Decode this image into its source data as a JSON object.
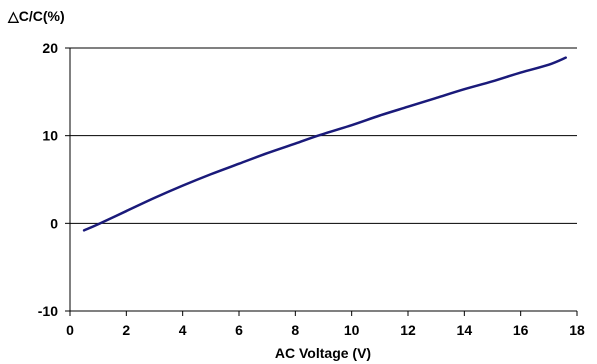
{
  "chart_data": {
    "type": "line",
    "title": "",
    "ylabel": "△C/C(%)",
    "xlabel": "AC Voltage (V)",
    "xlim": [
      0,
      18
    ],
    "ylim": [
      -10,
      20
    ],
    "x_ticks": [
      0,
      2,
      4,
      6,
      8,
      10,
      12,
      14,
      16,
      18
    ],
    "x_tick_labels": [
      "0",
      "2",
      "4",
      "6",
      "8",
      "10",
      "12",
      "14",
      "16",
      "18"
    ],
    "y_ticks": [
      -10,
      0,
      10,
      20
    ],
    "y_tick_labels": [
      "-10",
      "0",
      "10",
      "20"
    ],
    "grid": "horizontal",
    "legend": "none",
    "line_color": "#1a1a7a",
    "series": [
      {
        "x": [
          0.5,
          1,
          2,
          3,
          4,
          5,
          6,
          7,
          8,
          8.8,
          10,
          11,
          12,
          13,
          14,
          15,
          16,
          17,
          17.6
        ],
        "values": [
          -0.8,
          -0.1,
          1.4,
          2.9,
          4.3,
          5.6,
          6.8,
          8.0,
          9.1,
          10.0,
          11.2,
          12.3,
          13.3,
          14.3,
          15.3,
          16.2,
          17.2,
          18.1,
          18.9
        ]
      }
    ]
  }
}
